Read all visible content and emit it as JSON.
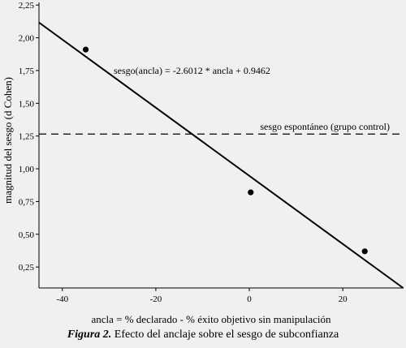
{
  "chart_data": {
    "type": "scatter",
    "xlabel": "ancla = % declarado - % éxito objetivo sin manipulación",
    "ylabel": "magnitud del sesgo (d Cohen)",
    "xlim": [
      -45,
      33
    ],
    "ylim": [
      0.09,
      2.27
    ],
    "x_ticks": [
      -40,
      -20,
      0,
      20
    ],
    "x_tick_labels": [
      "-40",
      "-20",
      "0",
      "20"
    ],
    "y_ticks": [
      0.25,
      0.5,
      0.75,
      1.0,
      1.25,
      1.5,
      1.75,
      2.0,
      2.25
    ],
    "y_tick_labels": [
      "0,25",
      "0,50",
      "0,75",
      "1,00",
      "1,25",
      "1,50",
      "1,75",
      "2,00",
      "2,25"
    ],
    "points": [
      {
        "x": -35,
        "y": 1.91
      },
      {
        "x": 0.3,
        "y": 0.82
      },
      {
        "x": 24.7,
        "y": 0.37
      }
    ],
    "regression": {
      "slope": -0.026012,
      "intercept": 0.9462,
      "label": "sesgo(ancla) = -2.6012 * ancla + 0.9462"
    },
    "reference_line": {
      "y": 1.265,
      "style": "dashed",
      "label": "sesgo espontáneo (grupo control)"
    },
    "grid": false
  },
  "caption": {
    "figure_label": "Figura 2.",
    "text": " Efecto del anclaje sobre el sesgo de subconfianza"
  }
}
